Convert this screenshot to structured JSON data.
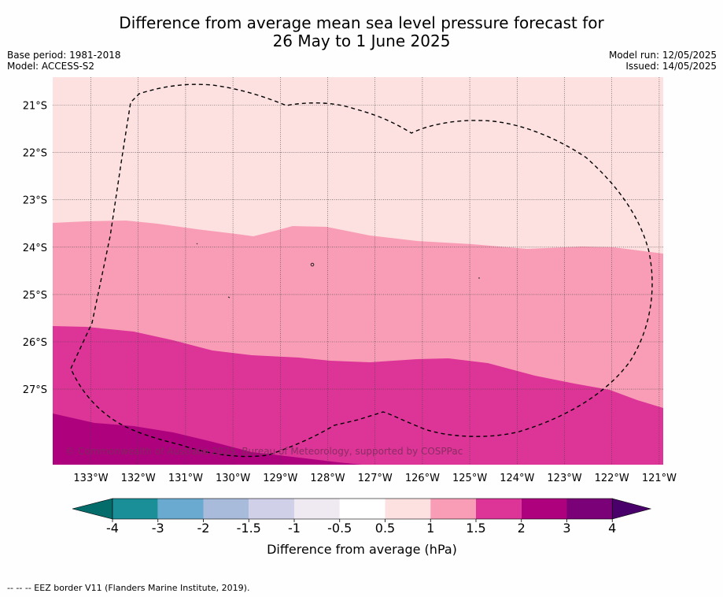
{
  "title_line1": "Difference from average mean sea level pressure forecast for",
  "title_line2": "26 May to 1 June 2025",
  "base_period": "Base period: 1981-2018",
  "model": "Model: ACCESS-S2",
  "model_run": "Model run: 12/05/2025",
  "issued": "Issued: 14/05/2025",
  "copyright": "© Commonwealth of Australia 2025, Bureau of Meteorology, supported by COSPPac",
  "lon_labels": [
    "133°W",
    "132°W",
    "131°W",
    "130°W",
    "129°W",
    "128°W",
    "127°W",
    "126°W",
    "125°W",
    "124°W",
    "123°W",
    "122°W",
    "121°W"
  ],
  "lat_labels": [
    "21°S",
    "22°S",
    "23°S",
    "24°S",
    "25°S",
    "26°S",
    "27°S"
  ],
  "colorbar": {
    "label": "Difference from average (hPa)",
    "ticks": [
      "-4",
      "-3",
      "-2",
      "-1.5",
      "-1",
      "-0.5",
      "0.5",
      "1",
      "1.5",
      "2",
      "3",
      "4"
    ],
    "colors": [
      "#1b8f98",
      "#6aaad0",
      "#a8bbdb",
      "#d0d0e8",
      "#efe9f1",
      "#ffffff",
      "#fde0e0",
      "#f99db6",
      "#dd3497",
      "#ae017e",
      "#7a0177"
    ],
    "low_extend_color": "#046c6a",
    "high_extend_color": "#49006a"
  },
  "map_colors": {
    "band_0.5_1": "#fde0e0",
    "band_1_1.5": "#f99db6",
    "band_1.5_2": "#dd3497",
    "band_2_3": "#ae017e"
  },
  "footnote": "--  --  -- EEZ border V11 (Flanders Marine Institute, 2019)."
}
